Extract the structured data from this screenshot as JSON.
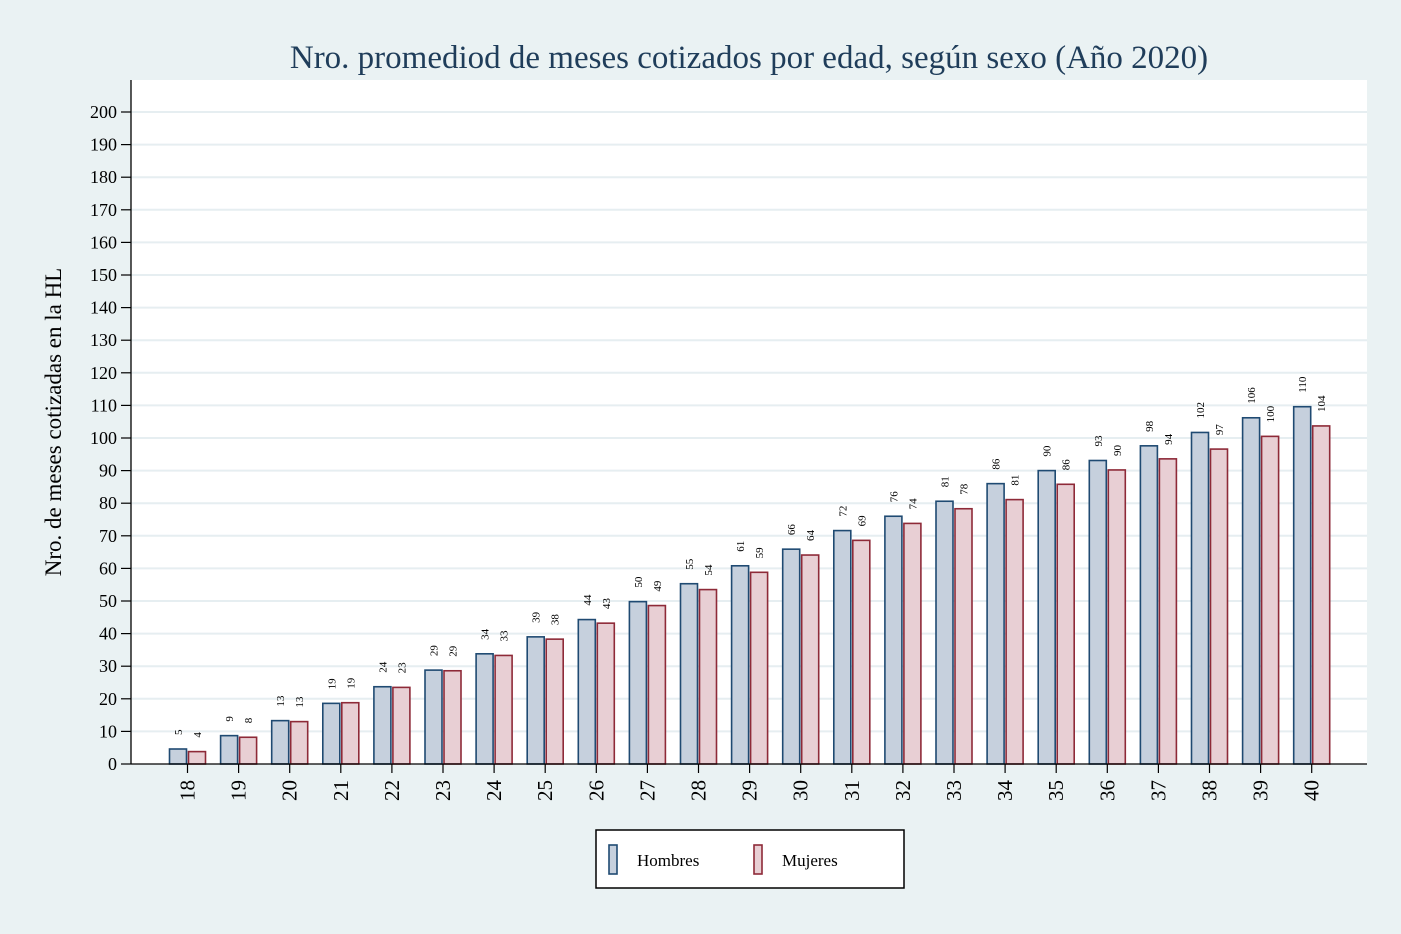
{
  "chart_data": {
    "type": "bar",
    "title": "Nro. promediod de meses cotizados por edad, según sexo (Año 2020)",
    "xlabel": "",
    "ylabel": "Nro. de meses cotizadas en la HL",
    "ylim": [
      0,
      200
    ],
    "yticks": [
      0,
      10,
      20,
      30,
      40,
      50,
      60,
      70,
      80,
      90,
      100,
      110,
      120,
      130,
      140,
      150,
      160,
      170,
      180,
      190,
      200
    ],
    "grid": true,
    "legend_position": "bottom",
    "categories": [
      "18",
      "19",
      "20",
      "21",
      "22",
      "23",
      "24",
      "25",
      "26",
      "27",
      "28",
      "29",
      "30",
      "31",
      "32",
      "33",
      "34",
      "35",
      "36",
      "37",
      "38",
      "39",
      "40"
    ],
    "series": [
      {
        "name": "Hombres",
        "color": "#c6d0dd",
        "stroke": "#1f4a72",
        "values": [
          4.6,
          8.7,
          13.3,
          18.6,
          23.7,
          28.8,
          33.8,
          39.0,
          44.3,
          49.8,
          55.3,
          60.8,
          65.9,
          71.6,
          76.0,
          80.6,
          86.0,
          90.0,
          93.1,
          97.6,
          101.7,
          106.2,
          109.6
        ],
        "labels": [
          "5",
          "9",
          "13",
          "19",
          "24",
          "29",
          "34",
          "39",
          "44",
          "50",
          "55",
          "61",
          "66",
          "72",
          "76",
          "81",
          "86",
          "90",
          "93",
          "98",
          "102",
          "106",
          "110"
        ]
      },
      {
        "name": "Mujeres",
        "color": "#e8cfd4",
        "stroke": "#8e2a38",
        "values": [
          3.8,
          8.2,
          13.0,
          18.8,
          23.5,
          28.6,
          33.3,
          38.3,
          43.2,
          48.6,
          53.5,
          58.8,
          64.1,
          68.6,
          73.8,
          78.3,
          81.1,
          85.8,
          90.2,
          93.6,
          96.6,
          100.5,
          103.7
        ],
        "labels": [
          "4",
          "8",
          "13",
          "19",
          "23",
          "29",
          "33",
          "38",
          "43",
          "49",
          "54",
          "59",
          "64",
          "69",
          "74",
          "78",
          "81",
          "86",
          "90",
          "94",
          "97",
          "100",
          "104"
        ]
      }
    ]
  },
  "colors": {
    "background": "#eaf2f3",
    "plot_background": "#ffffff",
    "grid": "#e6eef1",
    "title": "#1f3d5a"
  }
}
